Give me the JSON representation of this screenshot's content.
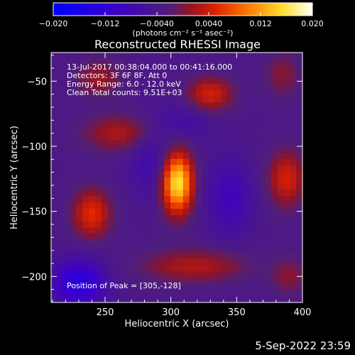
{
  "footer": {
    "date": "5-Sep-2022 23:59"
  },
  "chart_data": {
    "type": "heatmap",
    "title": "Reconstructed RHESSI Image",
    "xlabel": "Heliocentric X (arcsec)",
    "ylabel": "Heliocentric Y (arcsec)",
    "xlim": [
      209,
      400
    ],
    "ylim": [
      -220,
      -28
    ],
    "xticks": [
      250,
      300,
      350,
      400
    ],
    "yticks": [
      -50,
      -100,
      -150,
      -200
    ],
    "colorbar": {
      "vmin": -0.02,
      "vmax": 0.02,
      "ticks": [
        -0.02,
        -0.012,
        -0.004,
        0.004,
        0.012,
        0.02
      ],
      "tick_labels": [
        "−0.020",
        "−0.012",
        "−0.0040",
        "0.0040",
        "0.012",
        "0.020"
      ],
      "unit_label": "(photons cm⁻² s⁻¹ asec⁻²)"
    },
    "annotations": [
      "13-Jul-2017 00:38:04.000 to 00:41:16.000",
      "Detectors: 3F 6F 8F, Att 0",
      "Energy Range: 6.0 - 12.0 keV",
      "Clean     Total counts: 9.51E+03"
    ],
    "peak_label": "Position of Peak = [305,-128]",
    "sources": [
      {
        "x": 305,
        "y": -128,
        "value": 0.02,
        "sx": 8,
        "sy": 16
      },
      {
        "x": 330,
        "y": -60,
        "value": 0.008,
        "sx": 12,
        "sy": 9
      },
      {
        "x": 388,
        "y": -125,
        "value": 0.008,
        "sx": 10,
        "sy": 15
      },
      {
        "x": 240,
        "y": -152,
        "value": 0.009,
        "sx": 10,
        "sy": 13
      },
      {
        "x": 262,
        "y": -90,
        "value": 0.006,
        "sx": 20,
        "sy": 10
      },
      {
        "x": 318,
        "y": -192,
        "value": 0.006,
        "sx": 28,
        "sy": 9
      },
      {
        "x": 245,
        "y": -48,
        "value": 0.005,
        "sx": 12,
        "sy": 10
      },
      {
        "x": 385,
        "y": -45,
        "value": 0.004,
        "sx": 10,
        "sy": 12
      },
      {
        "x": 390,
        "y": -200,
        "value": 0.004,
        "sx": 10,
        "sy": 10
      },
      {
        "x": 230,
        "y": -205,
        "value": -0.01,
        "sx": 14,
        "sy": 12
      },
      {
        "x": 285,
        "y": -110,
        "value": -0.004,
        "sx": 12,
        "sy": 20
      },
      {
        "x": 345,
        "y": -140,
        "value": -0.005,
        "sx": 12,
        "sy": 20
      },
      {
        "x": 310,
        "y": -82,
        "value": -0.003,
        "sx": 14,
        "sy": 10
      }
    ]
  }
}
